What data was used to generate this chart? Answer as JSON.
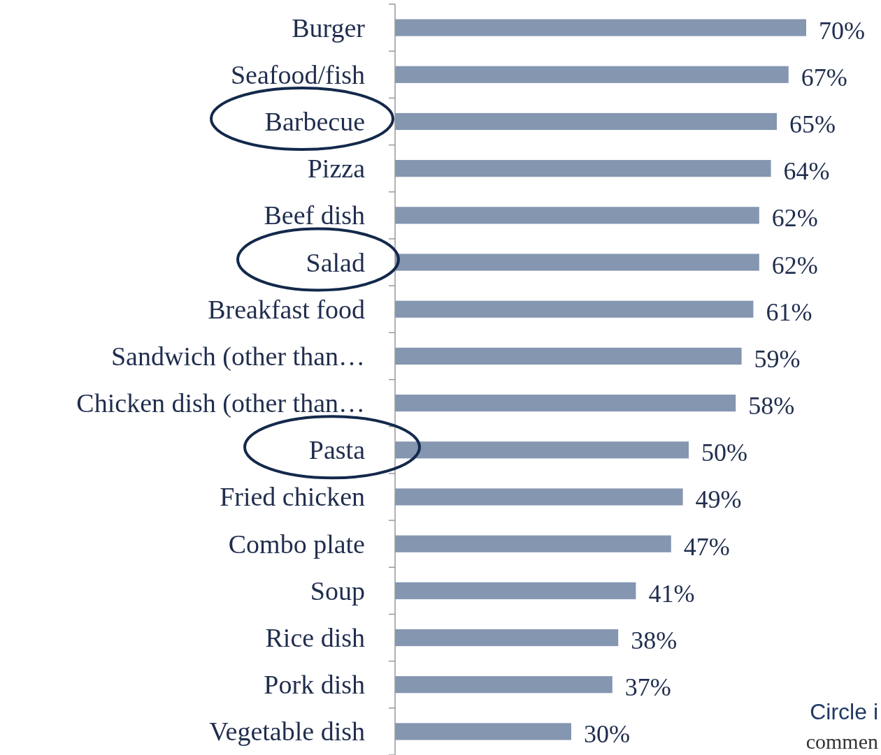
{
  "chart_data": {
    "type": "bar",
    "orientation": "horizontal",
    "categories": [
      "Burger",
      "Seafood/fish",
      "Barbecue",
      "Pizza",
      "Beef dish",
      "Salad",
      "Breakfast food",
      "Sandwich (other than…",
      "Chicken dish (other than…",
      "Pasta",
      "Fried chicken",
      "Combo plate",
      "Soup",
      "Rice  dish",
      "Pork dish",
      "Vegetable dish"
    ],
    "values": [
      70,
      67,
      65,
      64,
      62,
      62,
      61,
      59,
      58,
      50,
      49,
      47,
      41,
      38,
      37,
      30
    ],
    "value_labels": [
      "70%",
      "67%",
      "65%",
      "64%",
      "62%",
      "62%",
      "61%",
      "59%",
      "58%",
      "50%",
      "49%",
      "47%",
      "41%",
      "38%",
      "37%",
      "30%"
    ],
    "color": "#8496b0",
    "xlim": [
      0,
      70
    ],
    "annotations": [
      "Circle i",
      "commen"
    ]
  }
}
